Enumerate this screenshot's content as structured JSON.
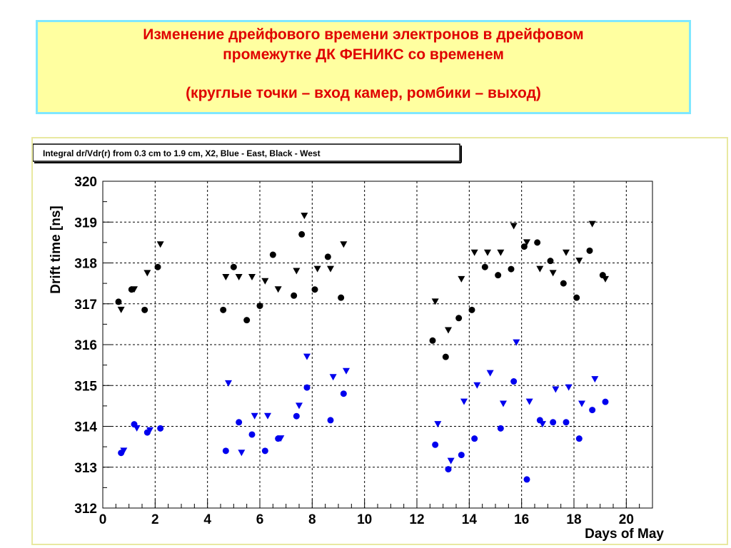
{
  "header": {
    "title_line1": "Изменение дрейфового времени электронов в дрейфовом",
    "title_line2": "промежутке ДК ФЕНИКС со временем",
    "subtitle": "(круглые точки – вход камер, ромбики – выход)"
  },
  "colors": {
    "title_text": "#e00000",
    "title_bg": "#ffffa0",
    "title_border": "#7fe7ff",
    "east": "#0000ee",
    "west": "#000000"
  },
  "chart_data": {
    "type": "scatter",
    "title": "Integral dr/Vdr(r) from 0.3 cm to 1.9 cm, X2, Blue - East, Black - West",
    "xlabel": "Days of May",
    "ylabel": "Drift time [ns]",
    "xlim": [
      0,
      21
    ],
    "ylim": [
      312,
      320
    ],
    "x_ticks": [
      0,
      2,
      4,
      6,
      8,
      10,
      12,
      14,
      16,
      18,
      20
    ],
    "y_ticks": [
      312,
      313,
      314,
      315,
      316,
      317,
      318,
      319,
      320
    ],
    "grid": true,
    "series": [
      {
        "name": "West in",
        "color": "#000000",
        "marker": "circle",
        "x": [
          0.6,
          1.1,
          1.6,
          2.1,
          4.6,
          5.0,
          5.5,
          6.0,
          6.5,
          7.3,
          7.6,
          8.1,
          8.6,
          9.1,
          12.6,
          13.1,
          13.6,
          14.1,
          14.6,
          15.1,
          15.6,
          16.1,
          16.6,
          17.1,
          17.6,
          18.1,
          18.6,
          19.1
        ],
        "y": [
          317.05,
          317.35,
          316.85,
          317.9,
          316.85,
          317.9,
          316.6,
          316.95,
          318.2,
          317.2,
          318.7,
          317.35,
          318.15,
          317.15,
          316.1,
          315.7,
          316.65,
          316.85,
          317.9,
          317.7,
          317.85,
          318.4,
          318.5,
          318.05,
          317.5,
          317.15,
          318.3,
          317.7
        ]
      },
      {
        "name": "West out",
        "color": "#000000",
        "marker": "triangle",
        "x": [
          0.7,
          1.2,
          1.7,
          2.2,
          4.7,
          5.2,
          5.7,
          6.2,
          6.7,
          7.4,
          7.7,
          8.2,
          8.7,
          9.2,
          12.7,
          13.2,
          13.7,
          14.2,
          14.7,
          15.2,
          15.7,
          16.2,
          16.7,
          17.2,
          17.7,
          18.2,
          18.7,
          19.2
        ],
        "y": [
          316.85,
          317.35,
          317.75,
          318.45,
          317.65,
          317.65,
          317.65,
          317.55,
          317.35,
          317.8,
          319.15,
          317.85,
          317.85,
          318.45,
          317.05,
          316.35,
          317.6,
          318.25,
          318.25,
          318.25,
          318.9,
          318.5,
          317.85,
          317.75,
          318.25,
          318.05,
          318.95,
          317.6
        ]
      },
      {
        "name": "East in",
        "color": "#0000ee",
        "marker": "circle",
        "x": [
          0.7,
          1.2,
          1.7,
          2.2,
          4.7,
          5.2,
          5.7,
          6.2,
          6.7,
          7.4,
          7.8,
          8.7,
          9.2,
          12.7,
          13.2,
          13.7,
          14.2,
          15.2,
          15.7,
          16.2,
          16.7,
          17.2,
          17.7,
          18.2,
          18.7,
          19.2
        ],
        "y": [
          313.35,
          314.05,
          313.85,
          313.95,
          313.4,
          314.1,
          313.8,
          313.4,
          313.7,
          314.25,
          314.95,
          314.15,
          314.8,
          313.55,
          312.95,
          313.3,
          313.7,
          313.95,
          315.1,
          312.7,
          314.15,
          314.1,
          314.1,
          313.7,
          314.4,
          314.6
        ]
      },
      {
        "name": "East out",
        "color": "#0000ee",
        "marker": "triangle",
        "x": [
          0.8,
          1.3,
          1.8,
          4.8,
          5.3,
          5.8,
          6.3,
          6.8,
          7.5,
          7.8,
          8.8,
          9.3,
          12.8,
          13.3,
          13.8,
          14.3,
          14.8,
          15.3,
          15.8,
          16.3,
          16.8,
          17.3,
          17.8,
          18.3,
          18.8
        ],
        "y": [
          313.4,
          313.95,
          313.9,
          315.05,
          313.35,
          314.25,
          314.25,
          313.7,
          314.5,
          315.7,
          315.2,
          315.35,
          314.05,
          313.15,
          314.6,
          315.0,
          315.3,
          314.55,
          316.05,
          314.6,
          314.05,
          314.9,
          314.95,
          314.55,
          315.15
        ]
      }
    ]
  }
}
